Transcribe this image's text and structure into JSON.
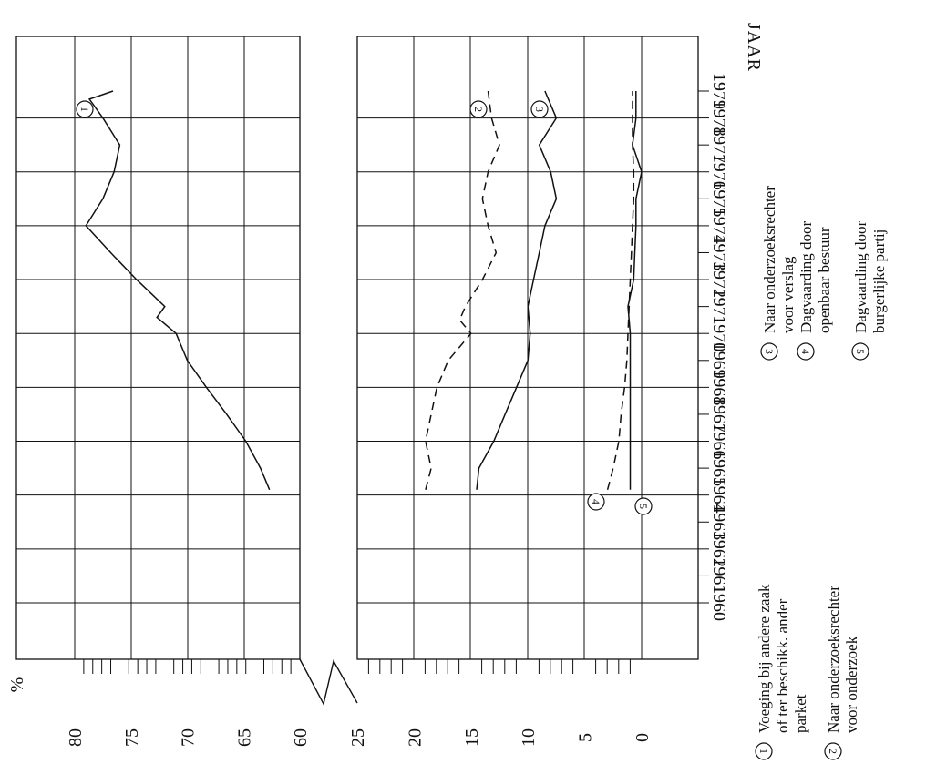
{
  "chart_data": {
    "type": "line",
    "x_label": "JAAR",
    "y_label": "%",
    "x_ticks": [
      1960,
      1961,
      1962,
      1963,
      1964,
      1965,
      1966,
      1967,
      1968,
      1969,
      1970,
      1971,
      1972,
      1973,
      1974,
      1975,
      1976,
      1977,
      1978,
      1979
    ],
    "y_ticks_upper": [
      60,
      65,
      70,
      75,
      80
    ],
    "y_ticks_lower": [
      0,
      5,
      10,
      15,
      20,
      25
    ],
    "ylim_upper": [
      60,
      80
    ],
    "ylim_lower": [
      0,
      25
    ],
    "series": [
      {
        "id": "1",
        "dash": "solid",
        "x": [
          1964.2,
          1965,
          1966,
          1967,
          1968,
          1969,
          1970,
          1970.6,
          1971,
          1972,
          1973,
          1974,
          1975,
          1976,
          1977,
          1978,
          1978.7,
          1979
        ],
        "y": [
          62.7,
          63.5,
          64.8,
          66.5,
          68.3,
          70,
          71,
          72.7,
          72,
          74.5,
          76.8,
          79,
          77.5,
          76.5,
          76,
          77.5,
          78.7,
          76.6
        ]
      },
      {
        "id": "2",
        "dash": "dashed",
        "x": [
          1964.2,
          1965,
          1966,
          1967,
          1968,
          1969,
          1970,
          1970.5,
          1971,
          1972,
          1973,
          1974,
          1975,
          1976,
          1977,
          1978,
          1979
        ],
        "y": [
          19,
          18.5,
          19,
          18.5,
          18,
          17,
          15,
          16,
          15.5,
          14,
          12.8,
          13.5,
          14,
          13.5,
          12.5,
          13.2,
          13.5
        ]
      },
      {
        "id": "3",
        "dash": "solid",
        "x": [
          1964.2,
          1965,
          1966,
          1967,
          1968,
          1969,
          1970,
          1971,
          1972,
          1973,
          1974,
          1975,
          1976,
          1977,
          1978,
          1979
        ],
        "y": [
          14.5,
          14.3,
          13,
          12,
          11,
          10,
          9.8,
          10,
          9.5,
          9,
          8.5,
          7.5,
          8,
          9,
          7.5,
          8.5
        ]
      },
      {
        "id": "4",
        "dash": "dashed",
        "x": [
          1964.2,
          1965,
          1966,
          1967,
          1968,
          1969,
          1970,
          1971,
          1972,
          1973,
          1974,
          1975,
          1976,
          1977,
          1978,
          1979
        ],
        "y": [
          3,
          2.5,
          2,
          1.8,
          1.5,
          1.3,
          1.2,
          1.1,
          1,
          0.9,
          0.8,
          0.7,
          0.7,
          0.8,
          0.8,
          0.8
        ]
      },
      {
        "id": "5",
        "dash": "solid",
        "x": [
          1964.2,
          1965,
          1966,
          1967,
          1968,
          1969,
          1970,
          1971,
          1972,
          1973,
          1974,
          1975,
          1976,
          1977,
          1978,
          1979
        ],
        "y": [
          1,
          1,
          1,
          1,
          1,
          1,
          1,
          1.2,
          0.7,
          0.6,
          0.5,
          0.5,
          0,
          0.8,
          0.5,
          0.5
        ]
      }
    ],
    "legend": [
      {
        "marker": "1",
        "lines": [
          "Voeging bij andere zaak",
          "of ter beschikk. ander",
          "parket"
        ]
      },
      {
        "marker": "2",
        "lines": [
          "Naar onderzoeksrechter",
          "voor onderzoek"
        ]
      },
      {
        "marker": "3",
        "lines": [
          "Naar onderzoeksrechter",
          "voor verslag"
        ]
      },
      {
        "marker": "4",
        "lines": [
          "Dagvaarding door",
          "openbaar bestuur"
        ]
      },
      {
        "marker": "5",
        "lines": [
          "Dagvaarding door",
          "burgerlijke partij"
        ]
      }
    ]
  }
}
